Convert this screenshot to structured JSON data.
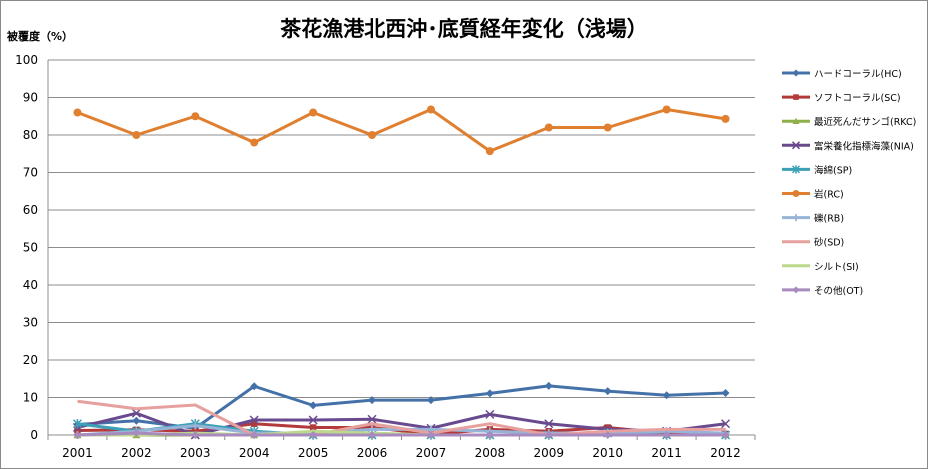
{
  "chart_data": {
    "type": "line",
    "title": "茶花漁港北西沖･底質経年変化（浅場）",
    "ylabel": "被覆度（%）",
    "xlabel": "",
    "ylim": [
      0,
      100
    ],
    "yticks": [
      "0",
      "10",
      "20",
      "30",
      "40",
      "50",
      "60",
      "70",
      "80",
      "90",
      "100"
    ],
    "categories": [
      "2001",
      "2002",
      "2003",
      "2004",
      "2005",
      "2006",
      "2007",
      "2008",
      "2009",
      "2010",
      "2011",
      "2012"
    ],
    "grid": "horizontal",
    "legend_position": "right",
    "series": [
      {
        "name": "ハードコーラル(HC)",
        "color": "#4472A8",
        "marker": "diamond",
        "values": [
          2.8,
          3.8,
          1.8,
          13,
          7.9,
          9.3,
          9.3,
          11.1,
          13.1,
          11.7,
          10.6,
          11.2
        ]
      },
      {
        "name": "ソフトコーラル(SC)",
        "color": "#B23A3A",
        "marker": "square",
        "values": [
          1.2,
          1.4,
          1.0,
          3.0,
          2.0,
          2.0,
          0.2,
          1.5,
          1.0,
          2.0,
          0.5,
          0.3
        ]
      },
      {
        "name": "最近死んだサンゴ(RKC)",
        "color": "#8DB04A",
        "marker": "triangle",
        "values": [
          0,
          0,
          0,
          0,
          0,
          0,
          0,
          0,
          0,
          0.5,
          0,
          0
        ]
      },
      {
        "name": "富栄養化指標海藻(NIA)",
        "color": "#6A4A8E",
        "marker": "x",
        "values": [
          2.0,
          5.8,
          0,
          4.0,
          4.0,
          4.2,
          1.8,
          5.5,
          3.0,
          1.5,
          1.0,
          3.0
        ]
      },
      {
        "name": "海綿(SP)",
        "color": "#3CA0B6",
        "marker": "star",
        "values": [
          3.0,
          1.0,
          3.0,
          1.0,
          0,
          0,
          0,
          0,
          0,
          0.5,
          0,
          0
        ]
      },
      {
        "name": "岩(RC)",
        "color": "#E07F2F",
        "marker": "circle",
        "values": [
          86,
          80,
          85,
          78,
          86,
          80,
          86.8,
          75.7,
          82,
          82,
          86.8,
          84.3
        ]
      },
      {
        "name": "礫(RB)",
        "color": "#96B4D8",
        "marker": "plus",
        "values": [
          0,
          1.0,
          2.5,
          0.5,
          0.5,
          1.5,
          1.5,
          1.0,
          0.5,
          0.5,
          1.0,
          0.5
        ]
      },
      {
        "name": "砂(SD)",
        "color": "#E6A09E",
        "marker": "none",
        "values": [
          9.0,
          7.0,
          8.0,
          0,
          0,
          3.0,
          0.5,
          3.0,
          0,
          1.0,
          1.5,
          1.5
        ]
      },
      {
        "name": "シルト(SI)",
        "color": "#BCD88A",
        "marker": "none",
        "values": [
          0,
          0,
          0.5,
          0,
          1.0,
          0.5,
          0,
          0,
          0,
          0,
          0,
          0
        ]
      },
      {
        "name": "その他(OT)",
        "color": "#A88ABE",
        "marker": "diamond",
        "values": [
          0,
          0.5,
          0,
          0,
          0,
          0,
          0,
          0,
          0,
          0,
          0,
          0
        ]
      }
    ]
  }
}
